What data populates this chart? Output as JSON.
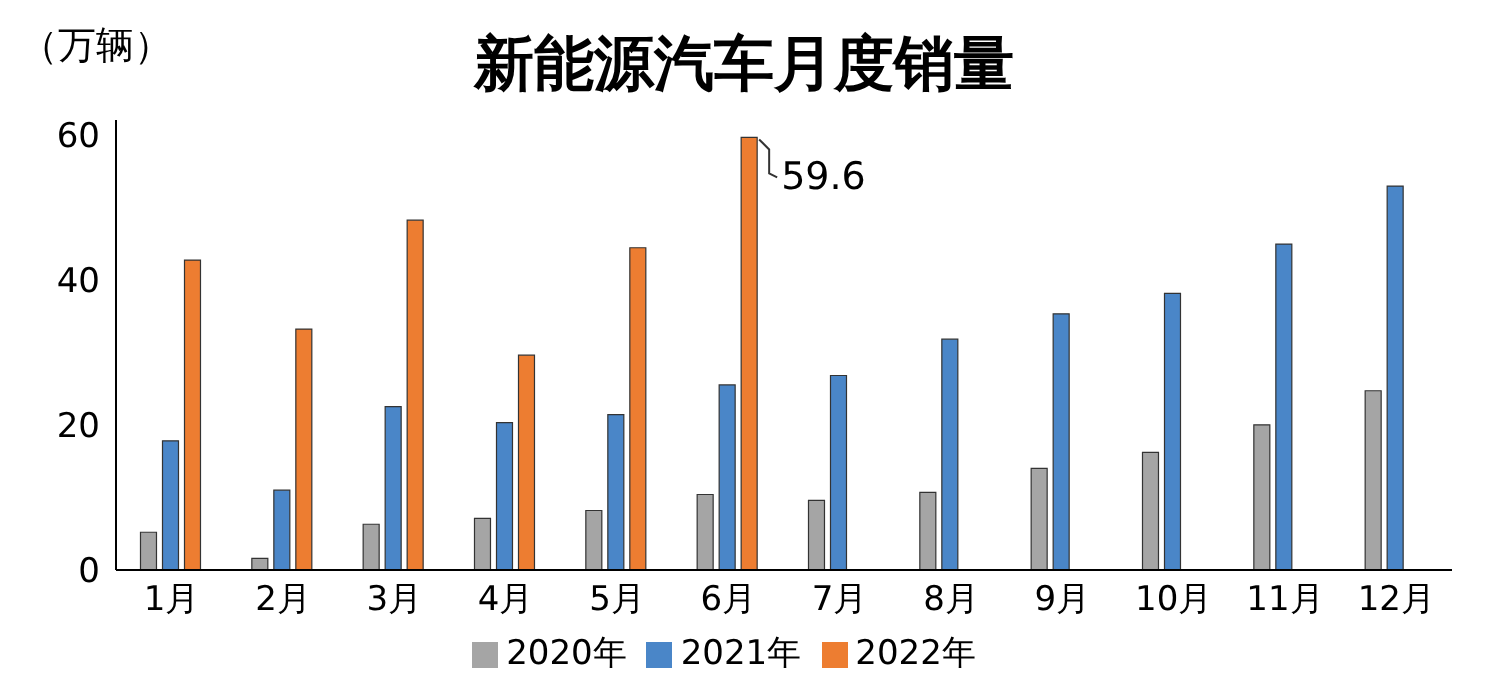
{
  "chart_data": {
    "type": "bar",
    "title": "新能源汽车月度销量",
    "ylabel": "（万辆）",
    "categories": [
      "1月",
      "2月",
      "3月",
      "4月",
      "5月",
      "6月",
      "7月",
      "8月",
      "9月",
      "10月",
      "11月",
      "12月"
    ],
    "series": [
      {
        "name": "2020年",
        "color": "#a5a5a5",
        "values": [
          5.2,
          1.6,
          6.3,
          7.1,
          8.2,
          10.4,
          9.6,
          10.7,
          14.0,
          16.2,
          20.0,
          24.7
        ]
      },
      {
        "name": "2021年",
        "color": "#4a86c8",
        "values": [
          17.8,
          11.0,
          22.5,
          20.3,
          21.4,
          25.5,
          26.8,
          31.8,
          35.3,
          38.1,
          44.9,
          52.9
        ]
      },
      {
        "name": "2022年",
        "color": "#ed7d31",
        "values": [
          42.7,
          33.2,
          48.2,
          29.6,
          44.4,
          59.6,
          null,
          null,
          null,
          null,
          null,
          null
        ],
        "value_labels": [
          null,
          null,
          null,
          null,
          null,
          "59.6",
          null,
          null,
          null,
          null,
          null,
          null
        ]
      }
    ],
    "ylim": [
      0,
      62
    ],
    "yticks": [
      0,
      20,
      40,
      60
    ],
    "grid": false,
    "legend": "bottom"
  }
}
